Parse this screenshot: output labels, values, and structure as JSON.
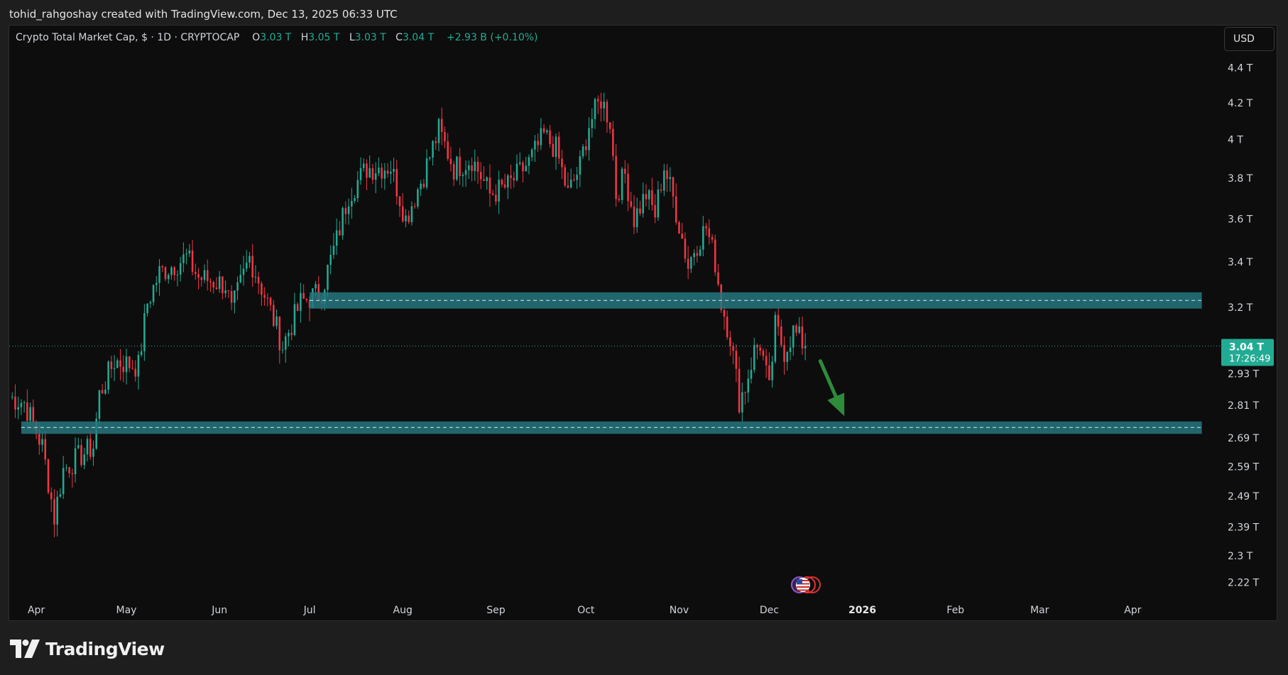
{
  "header": {
    "attribution": "tohid_rahgoshay created with TradingView.com, Dec 13, 2025 06:33 UTC"
  },
  "legend": {
    "symbol": "Crypto Total Market Cap, $ · 1D · CRYPTOCAP",
    "open_label": "O",
    "open_value": "3.03 T",
    "high_label": "H",
    "high_value": "3.05 T",
    "low_label": "L",
    "low_value": "3.03 T",
    "close_label": "C",
    "close_value": "3.04 T",
    "change": "+2.93 B (+0.10%)"
  },
  "currency_button": "USD",
  "price_tag": {
    "price": "3.04 T",
    "countdown": "17:26:49"
  },
  "footer": {
    "brand": "TradingView"
  },
  "colors": {
    "up": "#22ab94",
    "down": "#f23645",
    "zone": "#26777f",
    "arrow": "#2e8b3a",
    "background": "#0d0d0d"
  },
  "chart_data": {
    "type": "candlestick",
    "title": "Crypto Total Market Cap, $ · 1D · CRYPTOCAP",
    "y_axis_scale": "log",
    "ylim": [
      2.18,
      4.55
    ],
    "y_ticks": [
      {
        "value": 4.4,
        "label": "4.4 T"
      },
      {
        "value": 4.2,
        "label": "4.2 T"
      },
      {
        "value": 4.0,
        "label": "4 T"
      },
      {
        "value": 3.8,
        "label": "3.8 T"
      },
      {
        "value": 3.6,
        "label": "3.6 T"
      },
      {
        "value": 3.4,
        "label": "3.4 T"
      },
      {
        "value": 3.2,
        "label": "3.2 T"
      },
      {
        "value": 2.93,
        "label": "2.93 T"
      },
      {
        "value": 2.81,
        "label": "2.81 T"
      },
      {
        "value": 2.69,
        "label": "2.69 T"
      },
      {
        "value": 2.59,
        "label": "2.59 T"
      },
      {
        "value": 2.49,
        "label": "2.49 T"
      },
      {
        "value": 2.39,
        "label": "2.39 T"
      },
      {
        "value": 2.3,
        "label": "2.3 T"
      },
      {
        "value": 2.22,
        "label": "2.22 T"
      }
    ],
    "x_range": [
      "2025-03-23",
      "2026-04-30"
    ],
    "x_ticks": [
      {
        "date": "2025-04-01",
        "label": "Apr",
        "bold": false
      },
      {
        "date": "2025-05-01",
        "label": "May",
        "bold": false
      },
      {
        "date": "2025-06-01",
        "label": "Jun",
        "bold": false
      },
      {
        "date": "2025-07-01",
        "label": "Jul",
        "bold": false
      },
      {
        "date": "2025-08-01",
        "label": "Aug",
        "bold": false
      },
      {
        "date": "2025-09-01",
        "label": "Sep",
        "bold": false
      },
      {
        "date": "2025-10-01",
        "label": "Oct",
        "bold": false
      },
      {
        "date": "2025-11-01",
        "label": "Nov",
        "bold": false
      },
      {
        "date": "2025-12-01",
        "label": "Dec",
        "bold": false
      },
      {
        "date": "2026-01-01",
        "label": "2026",
        "bold": true
      },
      {
        "date": "2026-02-01",
        "label": "Feb",
        "bold": false
      },
      {
        "date": "2026-03-01",
        "label": "Mar",
        "bold": false
      },
      {
        "date": "2026-04-01",
        "label": "Apr",
        "bold": false
      }
    ],
    "last_price": 3.04,
    "close_anchors": [
      {
        "date": "2025-03-23",
        "close": 2.84
      },
      {
        "date": "2025-03-28",
        "close": 2.82
      },
      {
        "date": "2025-04-03",
        "close": 2.66
      },
      {
        "date": "2025-04-07",
        "close": 2.42
      },
      {
        "date": "2025-04-10",
        "close": 2.58
      },
      {
        "date": "2025-04-16",
        "close": 2.63
      },
      {
        "date": "2025-04-20",
        "close": 2.66
      },
      {
        "date": "2025-04-22",
        "close": 2.85
      },
      {
        "date": "2025-04-27",
        "close": 2.98
      },
      {
        "date": "2025-05-05",
        "close": 2.96
      },
      {
        "date": "2025-05-08",
        "close": 3.22
      },
      {
        "date": "2025-05-12",
        "close": 3.35
      },
      {
        "date": "2025-05-21",
        "close": 3.42
      },
      {
        "date": "2025-05-25",
        "close": 3.33
      },
      {
        "date": "2025-06-03",
        "close": 3.3
      },
      {
        "date": "2025-06-05",
        "close": 3.18
      },
      {
        "date": "2025-06-11",
        "close": 3.42
      },
      {
        "date": "2025-06-17",
        "close": 3.22
      },
      {
        "date": "2025-06-22",
        "close": 3.04
      },
      {
        "date": "2025-06-28",
        "close": 3.22
      },
      {
        "date": "2025-07-05",
        "close": 3.27
      },
      {
        "date": "2025-07-10",
        "close": 3.5
      },
      {
        "date": "2025-07-14",
        "close": 3.72
      },
      {
        "date": "2025-07-20",
        "close": 3.85
      },
      {
        "date": "2025-07-28",
        "close": 3.86
      },
      {
        "date": "2025-08-02",
        "close": 3.6
      },
      {
        "date": "2025-08-08",
        "close": 3.82
      },
      {
        "date": "2025-08-13",
        "close": 4.05
      },
      {
        "date": "2025-08-18",
        "close": 3.85
      },
      {
        "date": "2025-08-24",
        "close": 3.9
      },
      {
        "date": "2025-08-30",
        "close": 3.72
      },
      {
        "date": "2025-09-05",
        "close": 3.76
      },
      {
        "date": "2025-09-12",
        "close": 3.88
      },
      {
        "date": "2025-09-17",
        "close": 4.02
      },
      {
        "date": "2025-09-21",
        "close": 3.95
      },
      {
        "date": "2025-09-25",
        "close": 3.72
      },
      {
        "date": "2025-09-29",
        "close": 3.86
      },
      {
        "date": "2025-10-02",
        "close": 4.08
      },
      {
        "date": "2025-10-06",
        "close": 4.22
      },
      {
        "date": "2025-10-09",
        "close": 4.1
      },
      {
        "date": "2025-10-11",
        "close": 3.72
      },
      {
        "date": "2025-10-14",
        "close": 3.82
      },
      {
        "date": "2025-10-17",
        "close": 3.6
      },
      {
        "date": "2025-10-21",
        "close": 3.72
      },
      {
        "date": "2025-10-24",
        "close": 3.62
      },
      {
        "date": "2025-10-27",
        "close": 3.86
      },
      {
        "date": "2025-10-30",
        "close": 3.7
      },
      {
        "date": "2025-11-04",
        "close": 3.38
      },
      {
        "date": "2025-11-06",
        "close": 3.46
      },
      {
        "date": "2025-11-10",
        "close": 3.56
      },
      {
        "date": "2025-11-13",
        "close": 3.4
      },
      {
        "date": "2025-11-15",
        "close": 3.22
      },
      {
        "date": "2025-11-18",
        "close": 3.08
      },
      {
        "date": "2025-11-21",
        "close": 2.83
      },
      {
        "date": "2025-11-23",
        "close": 2.88
      },
      {
        "date": "2025-11-26",
        "close": 3.02
      },
      {
        "date": "2025-11-28",
        "close": 3.05
      },
      {
        "date": "2025-12-01",
        "close": 2.86
      },
      {
        "date": "2025-12-03",
        "close": 3.12
      },
      {
        "date": "2025-12-06",
        "close": 3.02
      },
      {
        "date": "2025-12-09",
        "close": 3.1
      },
      {
        "date": "2025-12-13",
        "close": 3.04
      }
    ],
    "zones": [
      {
        "low": 3.195,
        "high": 3.265,
        "mid": 3.23,
        "start": "2025-07-01",
        "end": "2026-04-24"
      },
      {
        "low": 2.705,
        "high": 2.75,
        "mid": 2.728,
        "start": "2025-03-27",
        "end": "2026-04-24"
      }
    ],
    "arrow": {
      "from": {
        "date": "2025-12-18",
        "value": 2.98
      },
      "to": {
        "date": "2025-12-26",
        "value": 2.77
      }
    }
  }
}
